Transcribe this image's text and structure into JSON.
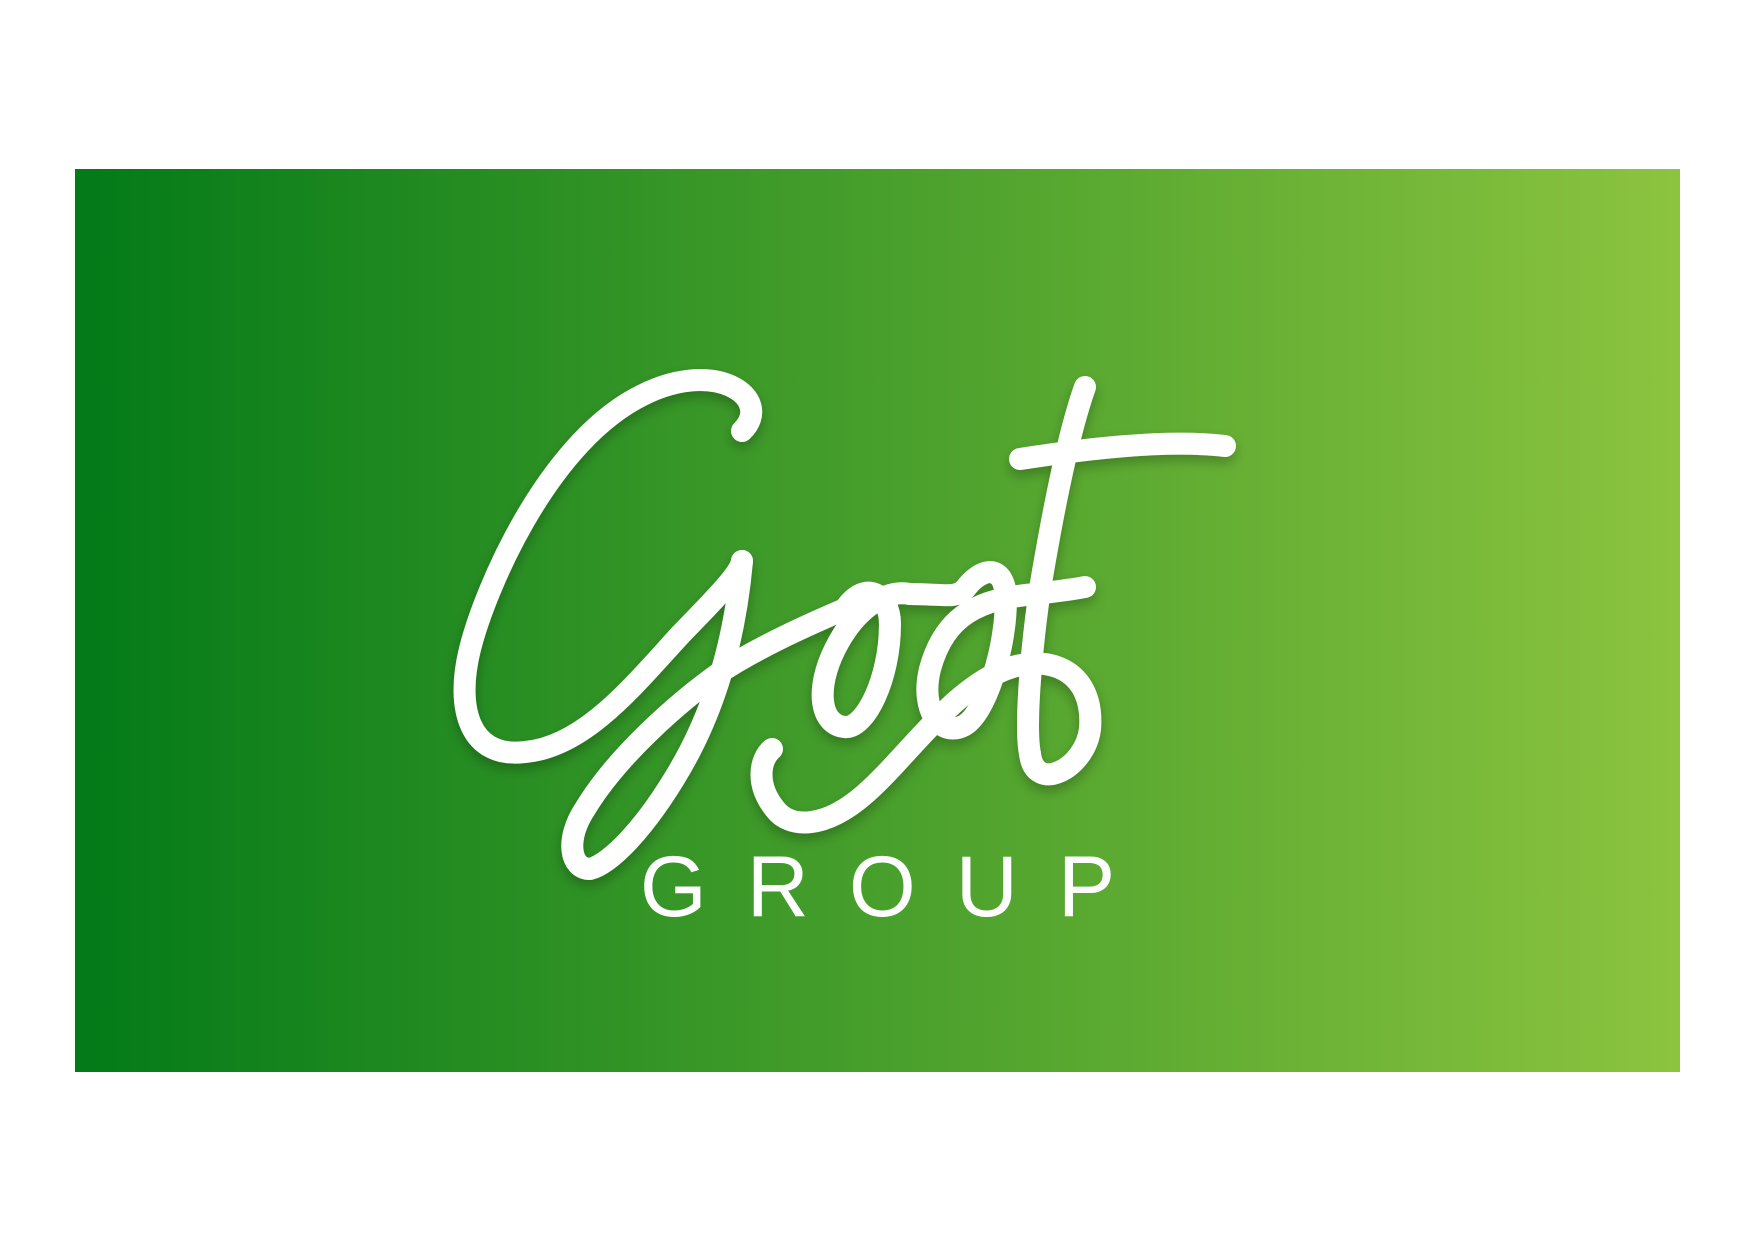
{
  "brand": {
    "wordmark": "Goof",
    "subtitle": "GROUP"
  },
  "colors": {
    "gradient_start": "#037a18",
    "gradient_end": "#8cc43f",
    "text": "#ffffff",
    "background": "#ffffff"
  }
}
